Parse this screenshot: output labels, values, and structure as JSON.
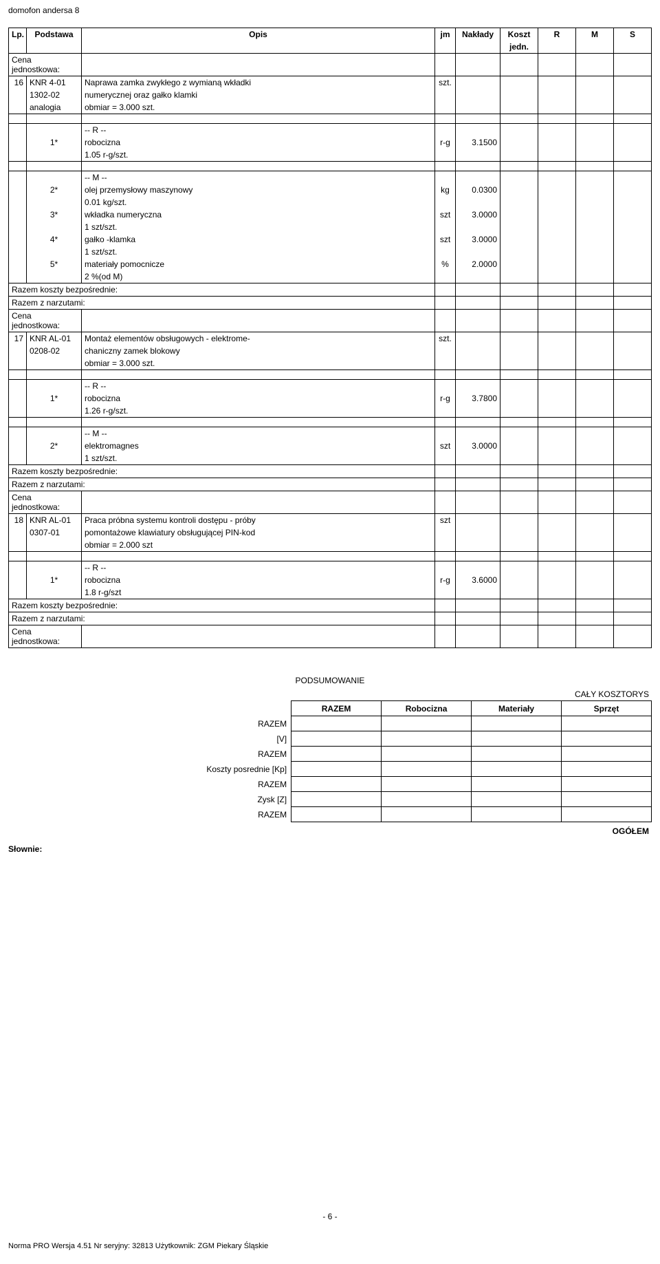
{
  "docTitle": "domofon andersa 8",
  "columns": {
    "lp": "Lp.",
    "podstawa": "Podstawa",
    "opis": "Opis",
    "jm": "jm",
    "naklady": "Nakłady",
    "koszt1": "Koszt",
    "koszt2": "jedn.",
    "r": "R",
    "m": "M",
    "s": "S"
  },
  "labels": {
    "cenaJedn": "Cena jednostkowa:",
    "razemBezp": "Razem koszty bezpośrednie:",
    "razemNarz": "Razem z narzutami:",
    "rHead": "-- R --",
    "mHead": "-- M --"
  },
  "r16": {
    "lp": "16",
    "pod1": "KNR 4-01",
    "pod2": "1302-02",
    "pod3": "analogia",
    "opis1": "Naprawa zamka zwykłego  z wymianą wkładki",
    "opis2": "numerycznej oraz gałko klamki",
    "opis3": "obmiar  = 3.000 szt.",
    "jm": "szt.",
    "r1_idx": "1*",
    "r1_label": "robocizna",
    "r1_sub": "1.05 r-g/szt.",
    "r1_jm": "r-g",
    "r1_val": "3.1500",
    "m1_idx": "2*",
    "m1_label": "olej przemysłowy maszynowy",
    "m1_sub": "0.01 kg/szt.",
    "m1_jm": "kg",
    "m1_val": "0.0300",
    "m2_idx": "3*",
    "m2_label": "wkładka numeryczna",
    "m2_sub": "1 szt/szt.",
    "m2_jm": "szt",
    "m2_val": "3.0000",
    "m3_idx": "4*",
    "m3_label": "gałko -klamka",
    "m3_sub": "1 szt/szt.",
    "m3_jm": "szt",
    "m3_val": "3.0000",
    "m4_idx": "5*",
    "m4_label": "materiały pomocnicze",
    "m4_sub": "2 %(od M)",
    "m4_jm": "%",
    "m4_val": "2.0000"
  },
  "r17": {
    "lp": "17",
    "pod1": "KNR AL-01",
    "pod2": "0208-02",
    "opis1": "Montaż elementów obsługowych - elektrome-",
    "opis2": "chaniczny zamek blokowy",
    "opis3": "obmiar  = 3.000 szt.",
    "jm": "szt.",
    "r1_idx": "1*",
    "r1_label": "robocizna",
    "r1_sub": "1.26 r-g/szt.",
    "r1_jm": "r-g",
    "r1_val": "3.7800",
    "m1_idx": "2*",
    "m1_label": "elektromagnes",
    "m1_sub": "1 szt/szt.",
    "m1_jm": "szt",
    "m1_val": "3.0000"
  },
  "r18": {
    "lp": "18",
    "pod1": "KNR AL-01",
    "pod2": "0307-01",
    "opis1": "Praca próbna systemu kontroli dostępu - próby",
    "opis2": "pomontażowe klawiatury obsługującej PIN-kod",
    "opis3": "obmiar  = 2.000 szt",
    "jm": "szt",
    "r1_idx": "1*",
    "r1_label": "robocizna",
    "r1_sub": "1.8 r-g/szt",
    "r1_jm": "r-g",
    "r1_val": "3.6000"
  },
  "summary": {
    "title": "PODSUMOWANIE",
    "caly": "CAŁY KOSZTORYS",
    "hRazem": "RAZEM",
    "hRob": "Robocizna",
    "hMat": "Materiały",
    "hSpr": "Sprzęt",
    "rowRazem": "RAZEM",
    "rowV": "[V]",
    "rowKp": "Koszty posrednie [Kp]",
    "rowZysk": "Zysk [Z]",
    "ogolem": "OGÓŁEM",
    "slownie": "Słownie:"
  },
  "pagenum": "- 6 -",
  "footer": "Norma PRO Wersja 4.51 Nr seryjny: 32813 Użytkownik: ZGM Piekary Śląskie"
}
